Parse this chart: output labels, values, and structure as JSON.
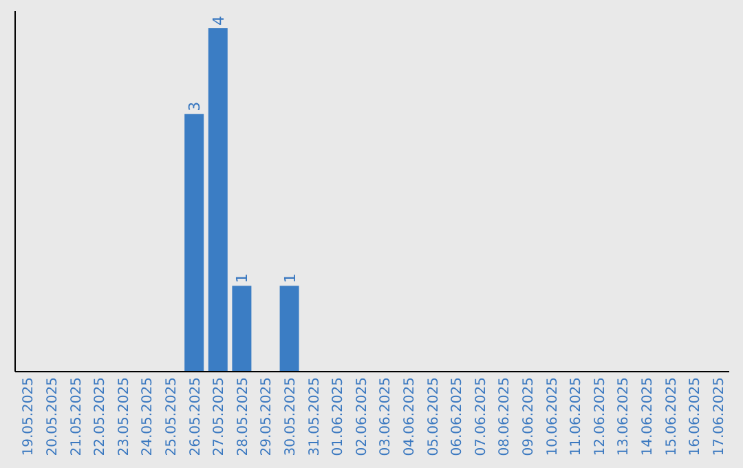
{
  "chart_data": {
    "type": "bar",
    "categories": [
      "19.05.2025",
      "20.05.2025",
      "21.05.2025",
      "22.05.2025",
      "23.05.2025",
      "24.05.2025",
      "25.05.2025",
      "26.05.2025",
      "27.05.2025",
      "28.05.2025",
      "29.05.2025",
      "30.05.2025",
      "31.05.2025",
      "01.06.2025",
      "02.06.2025",
      "03.06.2025",
      "04.06.2025",
      "05.06.2025",
      "06.06.2025",
      "07.06.2025",
      "08.06.2025",
      "09.06.2025",
      "10.06.2025",
      "11.06.2025",
      "12.06.2025",
      "13.06.2025",
      "14.06.2025",
      "15.06.2025",
      "16.06.2025",
      "17.06.2025"
    ],
    "values": [
      0,
      0,
      0,
      0,
      0,
      0,
      0,
      3,
      4,
      1,
      0,
      1,
      0,
      0,
      0,
      0,
      0,
      0,
      0,
      0,
      0,
      0,
      0,
      0,
      0,
      0,
      0,
      0,
      0,
      0
    ],
    "value_labels": [
      null,
      null,
      null,
      null,
      null,
      null,
      null,
      "3",
      "4",
      "1",
      null,
      "1",
      null,
      null,
      null,
      null,
      null,
      null,
      null,
      null,
      null,
      null,
      null,
      null,
      null,
      null,
      null,
      null,
      null,
      null
    ],
    "color": "#3b7dc4"
  }
}
